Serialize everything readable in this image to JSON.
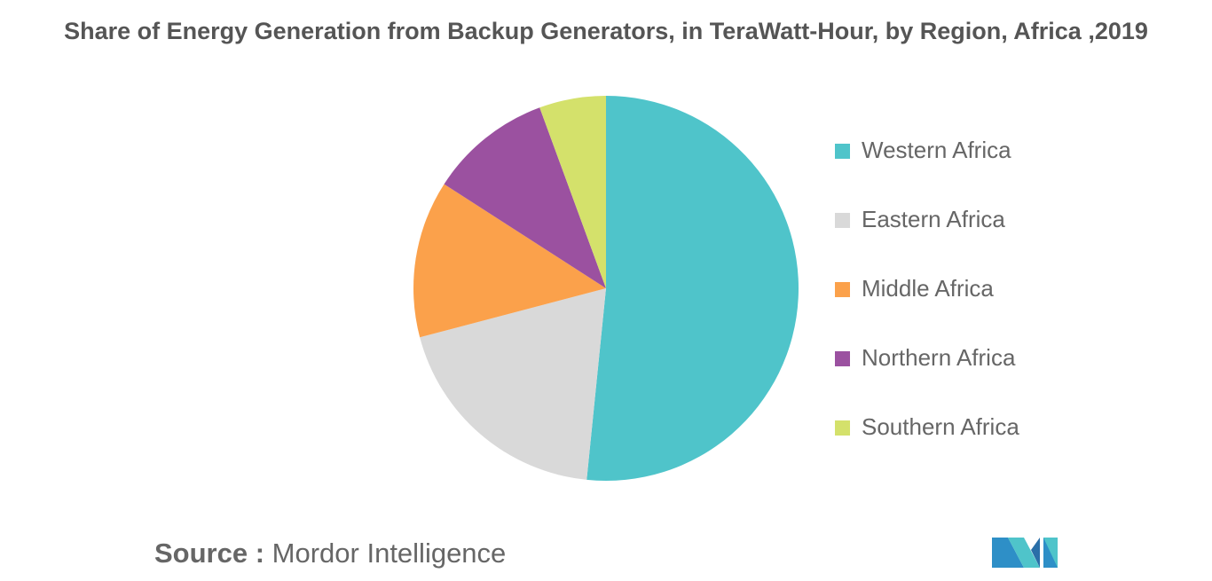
{
  "chart_data": {
    "type": "pie",
    "title": "Share of Energy Generation from Backup Generators, in TeraWatt-Hour, by Region, Africa ,2019",
    "categories": [
      "Western Africa",
      "Eastern Africa",
      "Middle Africa",
      "Northern Africa",
      "Southern Africa"
    ],
    "values": [
      51.6,
      19.3,
      13.2,
      10.3,
      5.6
    ],
    "colors": [
      "#4fc4ca",
      "#d9d9d9",
      "#fba14b",
      "#9b51a0",
      "#d4e16b"
    ],
    "legend": "right"
  },
  "source": {
    "label": "Source :",
    "text": "Mordor Intelligence"
  }
}
